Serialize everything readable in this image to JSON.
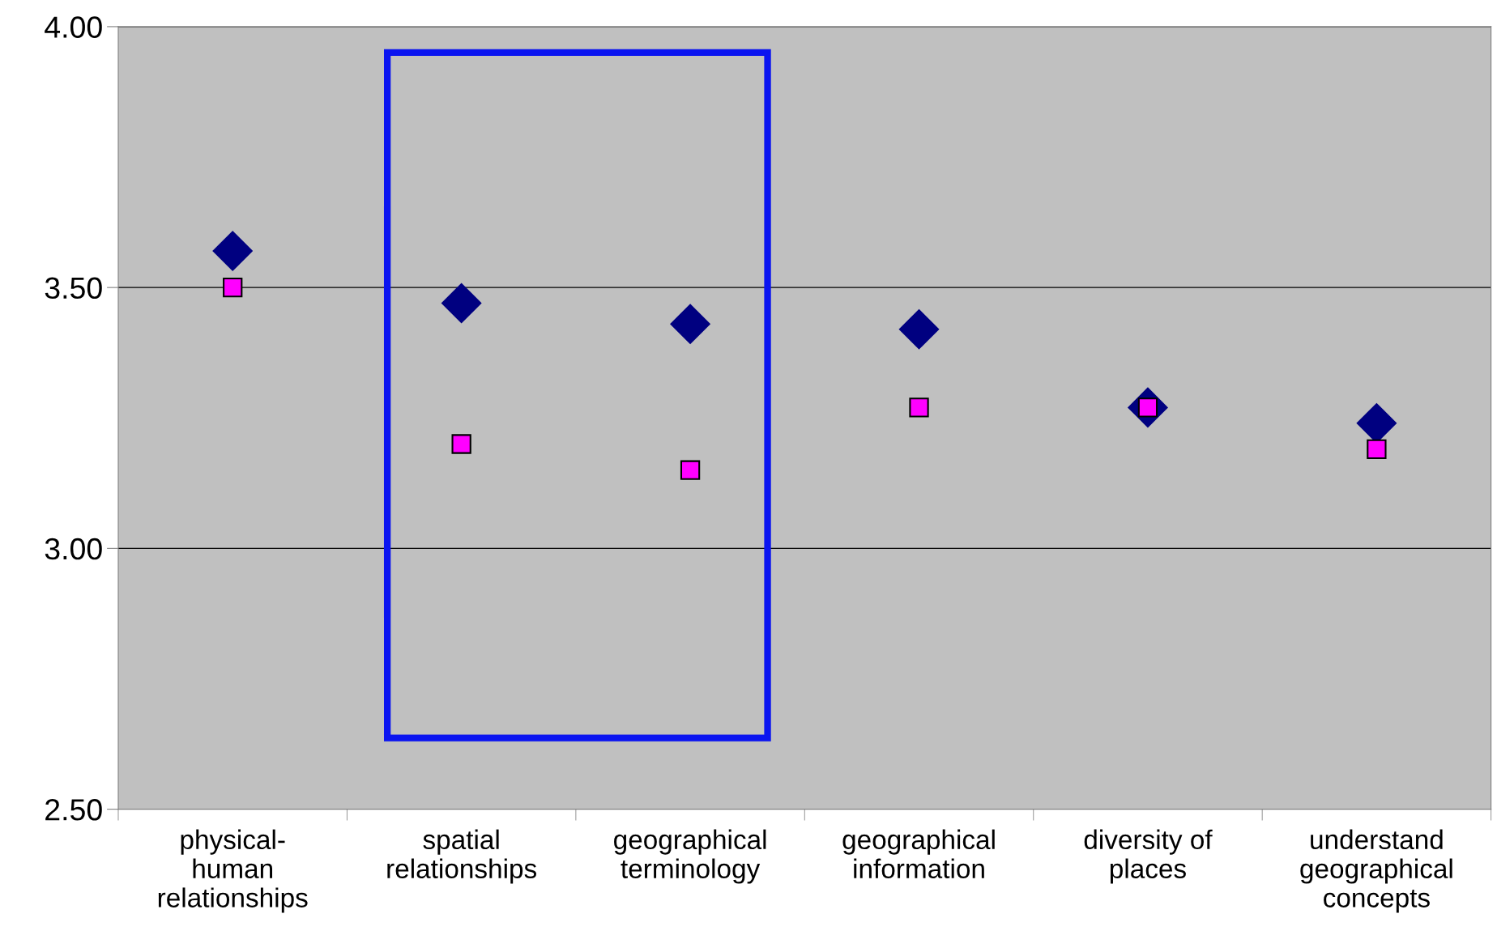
{
  "chart_data": {
    "type": "scatter",
    "categories": [
      "physical-\nhuman\nrelationships",
      "spatial\nrelationships",
      "geographical\nterminology",
      "geographical\ninformation",
      "diversity of\nplaces",
      "understand\ngeographical\nconcepts"
    ],
    "series": [
      {
        "color": "#000080",
        "marker": "diamond",
        "values": [
          3.57,
          3.47,
          3.43,
          3.42,
          3.27,
          3.24
        ]
      },
      {
        "color": "#ff00ff",
        "marker": "square",
        "values": [
          3.5,
          3.2,
          3.15,
          3.27,
          3.27,
          3.19
        ]
      }
    ],
    "ylim": [
      2.5,
      4.0
    ],
    "yticks": [
      {
        "value": 2.5,
        "label": "2.50"
      },
      {
        "value": 3.0,
        "label": "3.00"
      },
      {
        "value": 3.5,
        "label": "3.50"
      },
      {
        "value": 4.0,
        "label": "4.00"
      }
    ],
    "grid": "y",
    "legend": false
  }
}
